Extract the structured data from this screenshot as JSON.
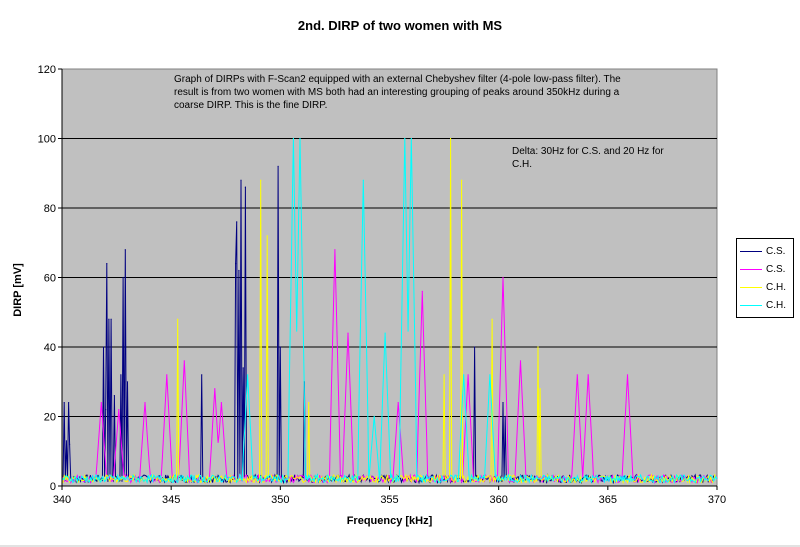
{
  "chart_data": {
    "type": "line",
    "title": "2nd. DIRP of two women with MS",
    "xlabel": "Frequency [kHz]",
    "ylabel": "DIRP [mV]",
    "xlim": [
      340,
      370
    ],
    "ylim": [
      0,
      120
    ],
    "x_ticks": [
      "340",
      "345",
      "350",
      "355",
      "360",
      "365",
      "370"
    ],
    "y_ticks": [
      "0",
      "20",
      "40",
      "60",
      "80",
      "100",
      "120"
    ],
    "grid": "horizontal",
    "plot_background": "#c0c0c0",
    "legend_placement": "right",
    "annotations": [
      "Graph of DIRPs with F-Scan2 equipped with an external Chebyshev filter (4-pole low-pass filter).  The result is from two women with MS both had an interesting grouping of peaks around 350kHz during a coarse DIRP. This is the fine DIRP.",
      "Delta: 30Hz for C.S. and 20 Hz for C.H."
    ],
    "series": [
      {
        "name": "C.S.",
        "color": "#000080",
        "style": "spikes",
        "baseline": 1,
        "peaks": [
          [
            340.1,
            24
          ],
          [
            340.2,
            13
          ],
          [
            340.3,
            24
          ],
          [
            340.35,
            12
          ],
          [
            341.9,
            40
          ],
          [
            342.0,
            22
          ],
          [
            342.05,
            64
          ],
          [
            342.15,
            48
          ],
          [
            342.25,
            48
          ],
          [
            342.4,
            26
          ],
          [
            342.7,
            32
          ],
          [
            342.8,
            60
          ],
          [
            342.9,
            68
          ],
          [
            343.0,
            30
          ],
          [
            346.4,
            32
          ],
          [
            347.95,
            64
          ],
          [
            348.0,
            76
          ],
          [
            348.1,
            62
          ],
          [
            348.2,
            88
          ],
          [
            348.3,
            34
          ],
          [
            348.4,
            86
          ],
          [
            349.9,
            92
          ],
          [
            350.0,
            40
          ],
          [
            351.1,
            30
          ],
          [
            358.9,
            40
          ],
          [
            360.2,
            24
          ],
          [
            360.3,
            20
          ]
        ]
      },
      {
        "name": "C.S.",
        "color": "#ff00ff",
        "style": "triangles",
        "baseline": 1,
        "peaks": [
          [
            341.8,
            24
          ],
          [
            342.6,
            22
          ],
          [
            343.8,
            24
          ],
          [
            344.8,
            32
          ],
          [
            345.6,
            36
          ],
          [
            347.0,
            28
          ],
          [
            347.3,
            24
          ],
          [
            352.5,
            68
          ],
          [
            353.1,
            44
          ],
          [
            355.4,
            24
          ],
          [
            356.5,
            56
          ],
          [
            358.6,
            32
          ],
          [
            360.2,
            60
          ],
          [
            361.0,
            36
          ],
          [
            363.6,
            32
          ],
          [
            364.1,
            32
          ],
          [
            365.9,
            32
          ]
        ]
      },
      {
        "name": "C.H.",
        "color": "#ffff00",
        "style": "spikes",
        "baseline": 1,
        "peaks": [
          [
            345.3,
            48
          ],
          [
            349.1,
            88
          ],
          [
            349.4,
            72
          ],
          [
            351.3,
            24
          ],
          [
            357.5,
            32
          ],
          [
            357.8,
            100
          ],
          [
            358.3,
            88
          ],
          [
            359.7,
            48
          ],
          [
            361.8,
            40
          ],
          [
            361.9,
            28
          ]
        ]
      },
      {
        "name": "C.H.",
        "color": "#00ffff",
        "style": "triangles",
        "baseline": 1,
        "peaks": [
          [
            348.5,
            32
          ],
          [
            350.6,
            100
          ],
          [
            350.9,
            100
          ],
          [
            353.8,
            88
          ],
          [
            354.3,
            20
          ],
          [
            354.8,
            44
          ],
          [
            355.7,
            100
          ],
          [
            356.0,
            100
          ],
          [
            358.4,
            32
          ],
          [
            359.6,
            32
          ]
        ]
      }
    ]
  }
}
